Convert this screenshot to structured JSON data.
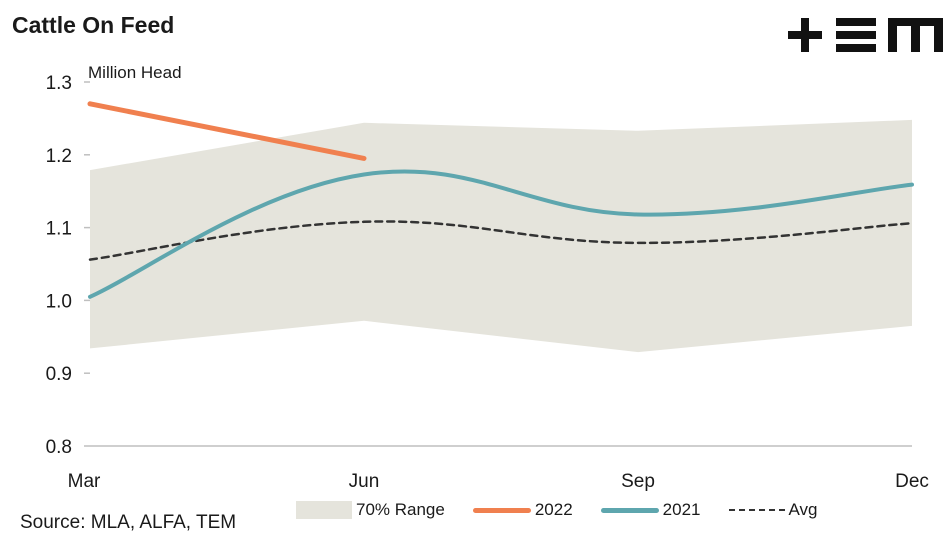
{
  "title": "Cattle On Feed",
  "logo": "+ ≡ m",
  "source": "Source: MLA, ALFA, TEM",
  "colors": {
    "range": "#e5e4dc",
    "y2022": "#f0804f",
    "y2021": "#5ea6ae",
    "avg": "#333333",
    "axis": "#bfbfbf"
  },
  "chart_data": {
    "type": "line",
    "title": "Cattle On Feed",
    "ylabel": "Million Head",
    "ylim": [
      0.8,
      1.3
    ],
    "yticks": [
      "1.3",
      "1.2",
      "1.1",
      "1.0",
      "0.9",
      "0.8"
    ],
    "x": [
      "Mar",
      "Jun",
      "Sep",
      "Dec"
    ],
    "range": {
      "name": "70% Range",
      "low": [
        0.934,
        0.972,
        0.929,
        0.965
      ],
      "high": [
        1.179,
        1.244,
        1.233,
        1.248
      ]
    },
    "series": [
      {
        "name": "2022",
        "values": [
          1.27,
          1.195,
          null,
          null
        ]
      },
      {
        "name": "2021",
        "values": [
          1.005,
          1.173,
          1.118,
          1.159
        ]
      },
      {
        "name": "Avg",
        "values": [
          1.056,
          1.108,
          1.079,
          1.106
        ]
      }
    ],
    "legend_position": "bottom",
    "grid": false
  }
}
